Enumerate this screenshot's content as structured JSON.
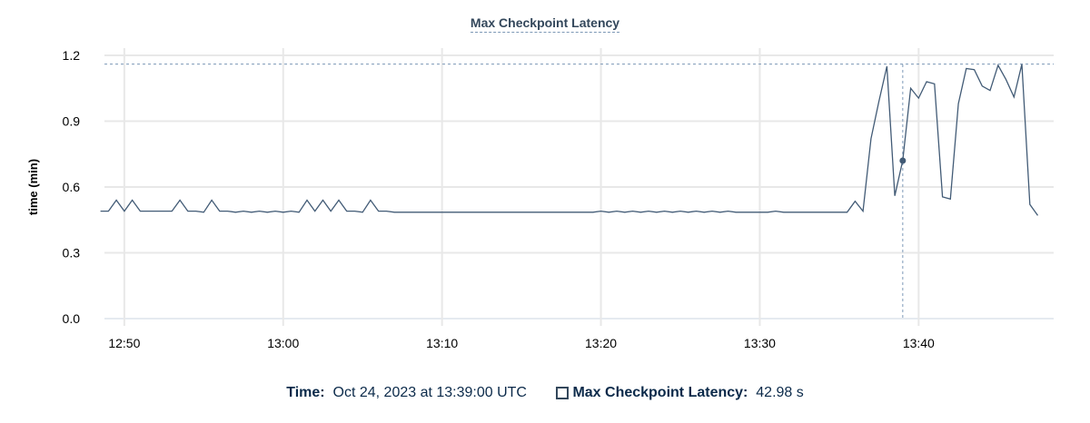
{
  "chart_data": {
    "type": "line",
    "title": "Max Checkpoint Latency",
    "xlabel": "",
    "ylabel": "time (min)",
    "ylim": [
      0,
      1.2
    ],
    "yticks": [
      "0.0",
      "0.3",
      "0.6",
      "0.9",
      "1.2"
    ],
    "xlim": [
      "12:48:45",
      "13:48:30"
    ],
    "xticks": [
      "12:50",
      "13:00",
      "13:10",
      "13:20",
      "13:30",
      "13:40"
    ],
    "grid": true,
    "series_color": "#425b76",
    "max_line": 1.16,
    "cursor_time": "13:39:00",
    "x": [
      "12:48:30",
      "12:49:00",
      "12:49:30",
      "12:50:00",
      "12:50:30",
      "12:51:00",
      "12:51:30",
      "12:52:00",
      "12:52:30",
      "12:53:00",
      "12:53:30",
      "12:54:00",
      "12:54:30",
      "12:55:00",
      "12:55:30",
      "12:56:00",
      "12:56:30",
      "12:57:00",
      "12:57:30",
      "12:58:00",
      "12:58:30",
      "12:59:00",
      "12:59:30",
      "13:00:00",
      "13:00:30",
      "13:01:00",
      "13:01:30",
      "13:02:00",
      "13:02:30",
      "13:03:00",
      "13:03:30",
      "13:04:00",
      "13:04:30",
      "13:05:00",
      "13:05:30",
      "13:06:00",
      "13:06:30",
      "13:07:00",
      "13:07:30",
      "13:08:00",
      "13:08:30",
      "13:09:00",
      "13:09:30",
      "13:10:00",
      "13:10:30",
      "13:11:00",
      "13:11:30",
      "13:12:00",
      "13:12:30",
      "13:13:00",
      "13:13:30",
      "13:14:00",
      "13:14:30",
      "13:15:00",
      "13:15:30",
      "13:16:00",
      "13:16:30",
      "13:17:00",
      "13:17:30",
      "13:18:00",
      "13:18:30",
      "13:19:00",
      "13:19:30",
      "13:20:00",
      "13:20:30",
      "13:21:00",
      "13:21:30",
      "13:22:00",
      "13:22:30",
      "13:23:00",
      "13:23:30",
      "13:24:00",
      "13:24:30",
      "13:25:00",
      "13:25:30",
      "13:26:00",
      "13:26:30",
      "13:27:00",
      "13:27:30",
      "13:28:00",
      "13:28:30",
      "13:29:00",
      "13:29:30",
      "13:30:00",
      "13:30:30",
      "13:31:00",
      "13:31:30",
      "13:32:00",
      "13:32:30",
      "13:33:00",
      "13:33:30",
      "13:34:00",
      "13:34:30",
      "13:35:00",
      "13:35:30",
      "13:36:00",
      "13:36:30",
      "13:37:00",
      "13:37:30",
      "13:38:00",
      "13:38:30",
      "13:39:00",
      "13:39:30",
      "13:40:00",
      "13:40:30",
      "13:41:00",
      "13:41:30",
      "13:42:00",
      "13:42:30",
      "13:43:00",
      "13:43:30",
      "13:44:00",
      "13:44:30",
      "13:45:00",
      "13:45:30",
      "13:46:00",
      "13:46:30",
      "13:47:00",
      "13:47:30"
    ],
    "y": [
      0.49,
      0.49,
      0.54,
      0.49,
      0.54,
      0.49,
      0.49,
      0.49,
      0.49,
      0.49,
      0.54,
      0.49,
      0.49,
      0.485,
      0.54,
      0.49,
      0.49,
      0.485,
      0.49,
      0.485,
      0.49,
      0.485,
      0.49,
      0.485,
      0.49,
      0.485,
      0.54,
      0.49,
      0.54,
      0.49,
      0.54,
      0.49,
      0.49,
      0.485,
      0.54,
      0.49,
      0.49,
      0.485,
      0.485,
      0.485,
      0.485,
      0.485,
      0.485,
      0.485,
      0.485,
      0.485,
      0.485,
      0.485,
      0.485,
      0.485,
      0.485,
      0.485,
      0.485,
      0.485,
      0.485,
      0.485,
      0.485,
      0.485,
      0.485,
      0.485,
      0.485,
      0.485,
      0.485,
      0.49,
      0.485,
      0.49,
      0.485,
      0.49,
      0.485,
      0.49,
      0.485,
      0.49,
      0.485,
      0.49,
      0.485,
      0.49,
      0.485,
      0.49,
      0.485,
      0.49,
      0.485,
      0.485,
      0.485,
      0.485,
      0.485,
      0.49,
      0.485,
      0.485,
      0.485,
      0.485,
      0.485,
      0.485,
      0.485,
      0.485,
      0.485,
      0.535,
      0.49,
      0.82,
      0.99,
      1.15,
      0.56,
      0.72,
      1.05,
      1.005,
      1.08,
      1.07,
      0.555,
      0.545,
      0.98,
      1.14,
      1.135,
      1.06,
      1.04,
      1.155,
      1.09,
      1.01,
      1.16,
      0.52,
      0.47
    ]
  },
  "tooltip": {
    "time_label": "Time:",
    "time_value": "Oct 24, 2023 at 13:39:00 UTC",
    "series_label": "Max Checkpoint Latency:",
    "series_value": "42.98 s"
  }
}
